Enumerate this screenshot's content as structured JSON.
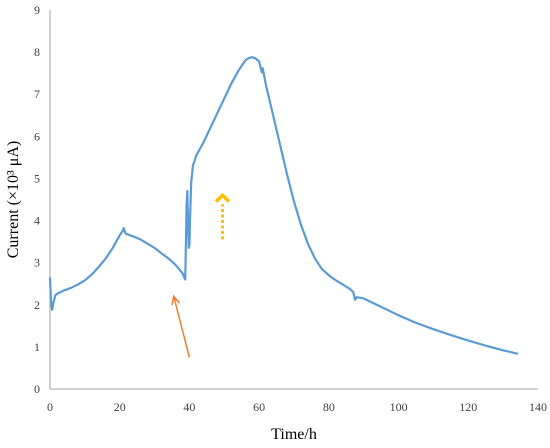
{
  "chart_data": {
    "type": "line",
    "title": "",
    "xlabel": "Time/h",
    "ylabel": "Current (×10³ μA)",
    "xlim": [
      0,
      140
    ],
    "ylim": [
      0,
      9
    ],
    "x_ticks": [
      "0",
      "20",
      "40",
      "60",
      "80",
      "100",
      "120",
      "140"
    ],
    "y_ticks": [
      "0",
      "1",
      "2",
      "3",
      "4",
      "5",
      "6",
      "7",
      "8",
      "9"
    ],
    "grid": false,
    "legend": "none",
    "series": [
      {
        "color": "#5b9bd5",
        "x": [
          0.0,
          0.3,
          0.6,
          1.0,
          1.5,
          2.0,
          3,
          4,
          6,
          8,
          10,
          12,
          14,
          16,
          18,
          20,
          20.8,
          21.2,
          21.6,
          22.0,
          24,
          26,
          28,
          30,
          32,
          34,
          36,
          38,
          38.8,
          39.0,
          39.2,
          39.4,
          39.6,
          39.8,
          40.0,
          40.2,
          40.5,
          41,
          42,
          44,
          46,
          48,
          50,
          52,
          54,
          56,
          57,
          58,
          59,
          60,
          60.5,
          60.8,
          61.0,
          61.3,
          62,
          64,
          66,
          68,
          70,
          72,
          74,
          76,
          78,
          80,
          82,
          84,
          86,
          87.0,
          87.5,
          87.7,
          88.0,
          90,
          95,
          100,
          105,
          110,
          115,
          120,
          125,
          130,
          132,
          134
        ],
        "y": [
          2.63,
          2.1,
          1.88,
          2.05,
          2.22,
          2.26,
          2.3,
          2.34,
          2.4,
          2.48,
          2.58,
          2.72,
          2.9,
          3.1,
          3.35,
          3.65,
          3.75,
          3.82,
          3.7,
          3.68,
          3.62,
          3.55,
          3.45,
          3.35,
          3.22,
          3.1,
          2.95,
          2.75,
          2.6,
          3.5,
          4.4,
          4.7,
          4.0,
          3.35,
          3.4,
          4.1,
          4.9,
          5.3,
          5.55,
          5.85,
          6.2,
          6.55,
          6.9,
          7.25,
          7.55,
          7.8,
          7.86,
          7.88,
          7.85,
          7.78,
          7.6,
          7.52,
          7.62,
          7.5,
          7.2,
          6.5,
          5.8,
          5.1,
          4.45,
          3.9,
          3.45,
          3.1,
          2.85,
          2.7,
          2.58,
          2.48,
          2.38,
          2.3,
          2.12,
          2.14,
          2.18,
          2.15,
          1.95,
          1.75,
          1.57,
          1.42,
          1.28,
          1.15,
          1.03,
          0.92,
          0.88,
          0.84
        ]
      }
    ],
    "annotations": [
      {
        "kind": "arrow",
        "style": "solid",
        "color": "#ed7d31",
        "from": [
          40,
          0.75
        ],
        "to": [
          35.5,
          2.2
        ]
      },
      {
        "kind": "arrow",
        "style": "dotted",
        "color": "#ffc000",
        "from": [
          49.5,
          3.55
        ],
        "to": [
          49.5,
          4.6
        ]
      }
    ]
  }
}
